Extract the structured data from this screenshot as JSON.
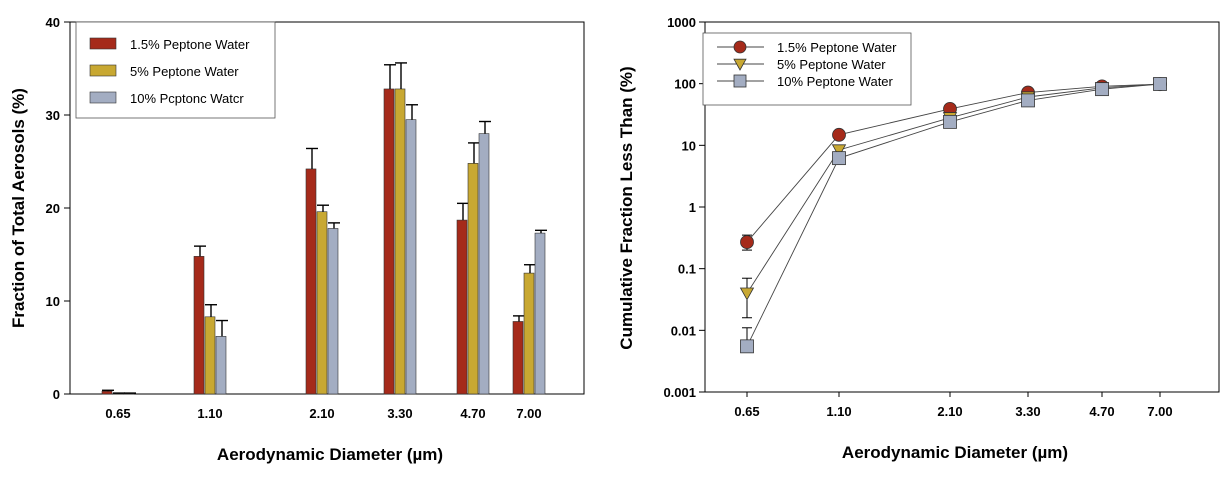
{
  "chart_data": [
    {
      "type": "bar",
      "categories": [
        "0.65",
        "1.10",
        "2.10",
        "3.30",
        "4.70",
        "7.00"
      ],
      "series": [
        {
          "name": "1.5% Peptone Water",
          "color": "#A52A1A",
          "values": [
            0.3,
            14.8,
            24.2,
            32.8,
            18.7,
            7.8
          ],
          "errors": [
            0.1,
            1.1,
            2.2,
            2.6,
            1.8,
            0.6
          ]
        },
        {
          "name": "5% Peptone Water",
          "color": "#C8A832",
          "values": [
            0.05,
            8.3,
            19.6,
            32.8,
            24.8,
            13.0
          ],
          "errors": [
            0.05,
            1.3,
            0.7,
            2.8,
            2.2,
            0.9
          ]
        },
        {
          "name": "10% Pcptonc Watcr",
          "color": "#A3ADC2",
          "values": [
            0.05,
            6.2,
            17.8,
            29.5,
            28.0,
            17.3
          ],
          "errors": [
            0.05,
            1.7,
            0.6,
            1.6,
            1.3,
            0.3
          ]
        }
      ],
      "xlabel": "Aerodynamic Diameter (µm)",
      "ylabel": "Fraction of Total Aerosols (%)",
      "ylim": [
        0,
        40
      ],
      "yticks": [
        "0",
        "10",
        "20",
        "30",
        "40"
      ],
      "ytick_values": [
        0,
        10,
        20,
        30,
        40
      ],
      "legend_position": "top-left"
    },
    {
      "type": "line",
      "categories": [
        "0.65",
        "1.10",
        "2.10",
        "3.30",
        "4.70",
        "7.00"
      ],
      "series": [
        {
          "name": "1.5% Peptone Water",
          "marker": "circle",
          "color": "#A52A1A",
          "values": [
            0.27,
            14.8,
            39.0,
            71.8,
            90.5,
            98.3
          ],
          "err_low": [
            0.2,
            13.5,
            36.0,
            68.0,
            88.0,
            97.0
          ],
          "err_high": [
            0.35,
            16.0,
            42.0,
            75.0,
            93.0,
            100.0
          ]
        },
        {
          "name": "5% Peptone Water",
          "marker": "triangle-down",
          "color": "#C8A832",
          "values": [
            0.04,
            8.4,
            28.0,
            60.8,
            85.6,
            98.6
          ],
          "err_low": [
            0.016,
            7.5,
            26.0,
            58.0,
            83.0,
            97.0
          ],
          "err_high": [
            0.07,
            9.5,
            30.0,
            63.0,
            88.0,
            100.0
          ]
        },
        {
          "name": "10% Peptone Water",
          "marker": "square",
          "color": "#A3ADC2",
          "values": [
            0.0055,
            6.2,
            24.0,
            53.5,
            81.5,
            98.8
          ],
          "err_low": [
            0.005,
            5.5,
            22.0,
            51.0,
            79.0,
            97.0
          ],
          "err_high": [
            0.011,
            7.0,
            26.0,
            56.0,
            84.0,
            100.0
          ]
        }
      ],
      "xlabel": "Aerodynamic Diameter (µm)",
      "ylabel": "Cumulative Fraction Less Than (%)",
      "yscale": "log",
      "ylim": [
        0.001,
        1000
      ],
      "yticks": [
        "0.001",
        "0.01",
        "0.1",
        "1",
        "10",
        "100",
        "1000"
      ],
      "ytick_values": [
        0.001,
        0.01,
        0.1,
        1,
        10,
        100,
        1000
      ],
      "legend_position": "top-left"
    }
  ]
}
